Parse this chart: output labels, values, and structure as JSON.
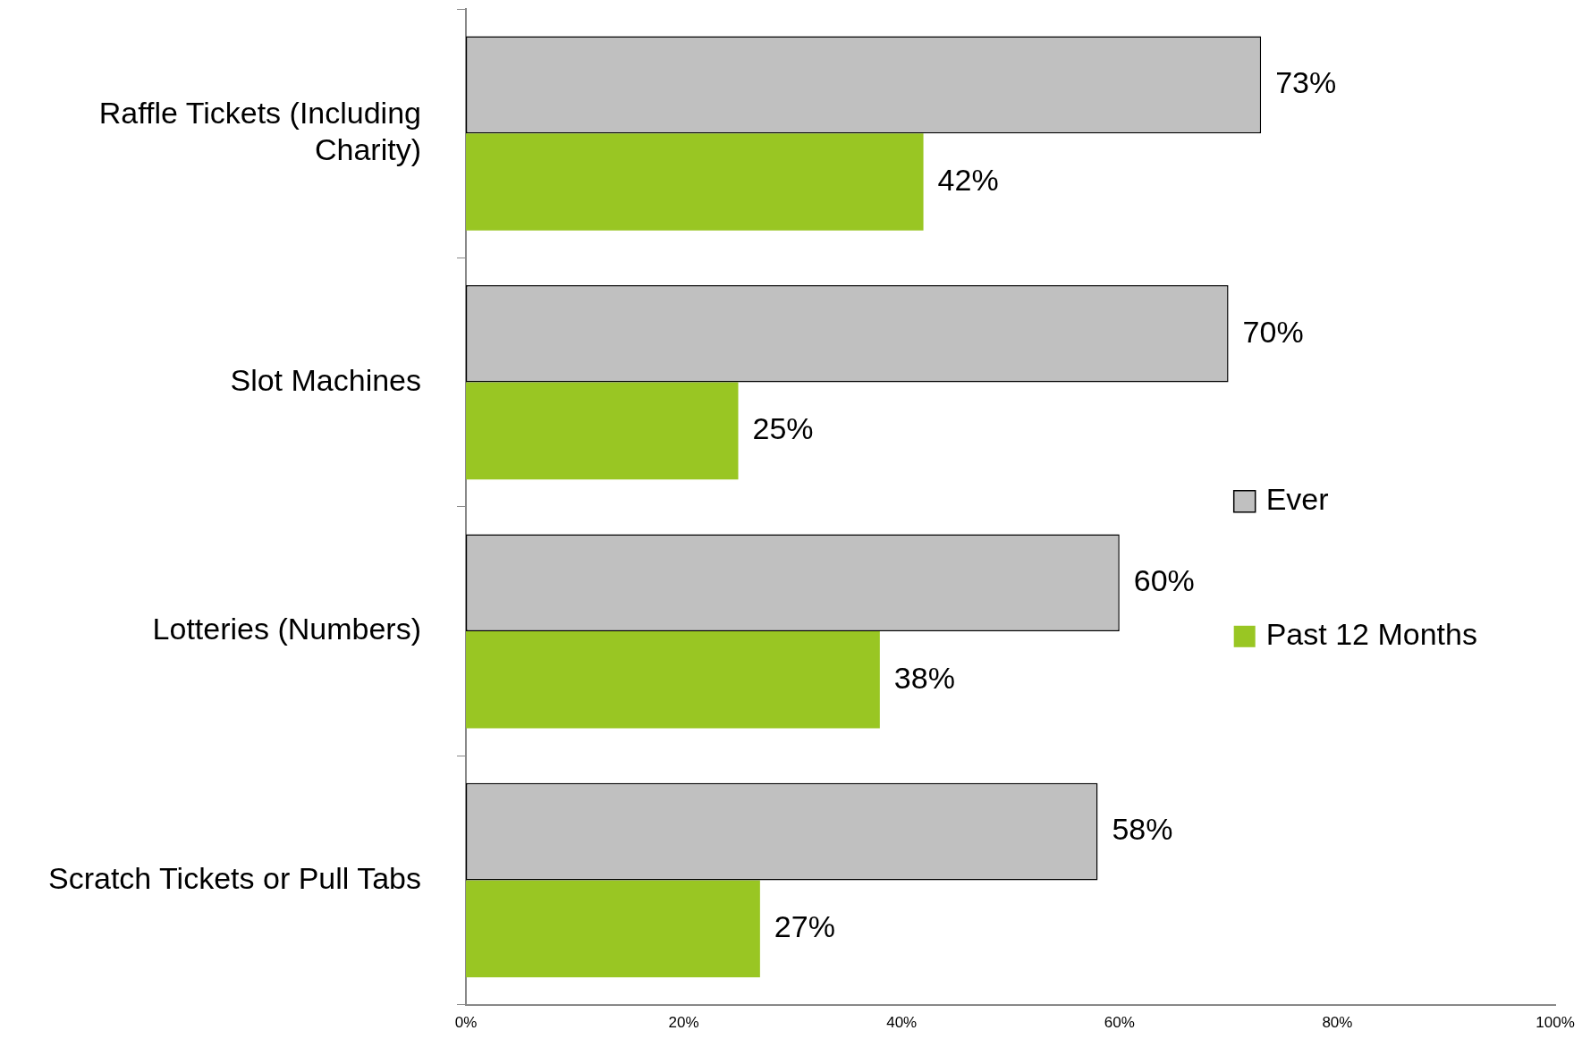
{
  "chart_data": {
    "type": "bar",
    "orientation": "horizontal",
    "categories": [
      "Raffle Tickets (Including Charity)",
      "Slot Machines",
      "Lotteries (Numbers)",
      "Scratch Tickets or Pull Tabs"
    ],
    "series": [
      {
        "name": "Ever",
        "color": "#c0c0c0",
        "values": [
          73,
          70,
          60,
          58
        ],
        "value_labels": [
          "73%",
          "70%",
          "60%",
          "58%"
        ]
      },
      {
        "name": "Past 12 Months",
        "color": "#99c623",
        "values": [
          42,
          25,
          38,
          27
        ],
        "value_labels": [
          "42%",
          "25%",
          "38%",
          "27%"
        ]
      }
    ],
    "xlim": [
      0,
      100
    ],
    "xticks": [
      {
        "value": 0,
        "label": "0%"
      },
      {
        "value": 20,
        "label": "20%"
      },
      {
        "value": 40,
        "label": "40%"
      },
      {
        "value": 60,
        "label": "60%"
      },
      {
        "value": 80,
        "label": "80%"
      },
      {
        "value": 100,
        "label": "100%"
      }
    ],
    "grid": false,
    "legend": "right"
  }
}
